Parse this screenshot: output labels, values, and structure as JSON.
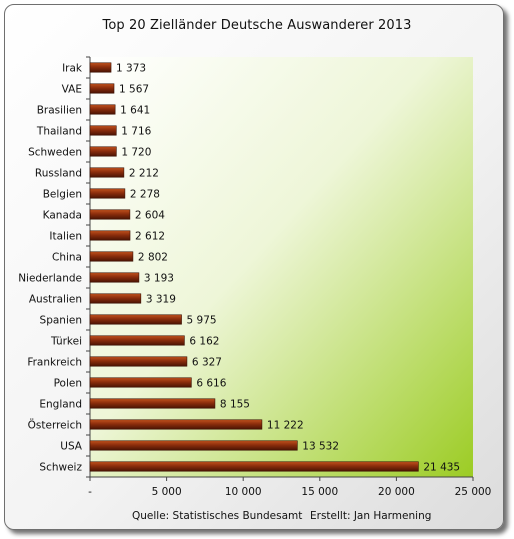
{
  "chart_data": {
    "type": "bar",
    "orientation": "horizontal",
    "title": "Top 20 Zielländer Deutsche Auswanderer 2013",
    "categories": [
      "Irak",
      "VAE",
      "Brasilien",
      "Thailand",
      "Schweden",
      "Russland",
      "Belgien",
      "Kanada",
      "Italien",
      "China",
      "Niederlande",
      "Australien",
      "Spanien",
      "Türkei",
      "Frankreich",
      "Polen",
      "England",
      "Österreich",
      "USA",
      "Schweiz"
    ],
    "values": [
      1373,
      1567,
      1641,
      1716,
      1720,
      2212,
      2278,
      2604,
      2612,
      2802,
      3193,
      3319,
      5975,
      6162,
      6327,
      6616,
      8155,
      11222,
      13532,
      21435
    ],
    "value_labels": [
      "1 373",
      "1 567",
      "1 641",
      "1 716",
      "1 720",
      "2 212",
      "2 278",
      "2 604",
      "2 612",
      "2 802",
      "3 193",
      "3 319",
      "5 975",
      "6 162",
      "6 327",
      "6 616",
      "8 155",
      "11 222",
      "13 532",
      "21 435"
    ],
    "xlim": [
      0,
      25000
    ],
    "x_ticks": [
      0,
      5000,
      10000,
      15000,
      20000,
      25000
    ],
    "x_tick_labels": [
      "-",
      "5 000",
      "10 000",
      "15 000",
      "20 000",
      "25 000"
    ],
    "grid": false,
    "legend": "none",
    "bar_color": "#8b2d0c",
    "plot_background": [
      "#ffffff",
      "#9ccc24"
    ]
  },
  "footer": {
    "source": "Quelle: Statistisches Bundesamt",
    "author": "Erstellt: Jan Harmening"
  }
}
